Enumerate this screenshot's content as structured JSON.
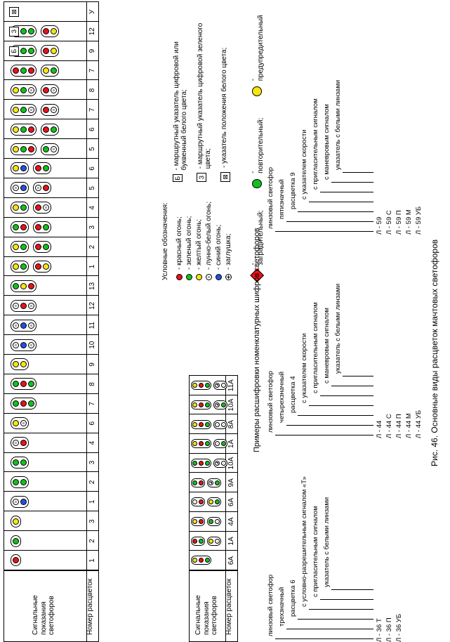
{
  "caption": "Рис. 46. Основные виды расцветок мачтовых светофоров",
  "examples_title": "Примеры расшифровки номенклатурных шифров светофоров",
  "table1": {
    "row_label": "Сигнальные показания светофоров",
    "num_label": "Номер расцветок",
    "numbers": [
      "1",
      "2",
      "3",
      "1",
      "2",
      "3",
      "4",
      "6",
      "7",
      "8",
      "9",
      "10",
      "11",
      "12",
      "13",
      "1",
      "2",
      "3",
      "4",
      "5",
      "6",
      "5",
      "6",
      "7",
      "8",
      "7",
      "9",
      "12",
      "У"
    ],
    "symbols": [
      "Б",
      "З",
      "⊠"
    ]
  },
  "table2": {
    "row_label": "Сигнальные показания светофоров",
    "num_label": "Номер расцветок",
    "numbers": [
      "6А",
      "1А",
      "4А",
      "6А",
      "9А",
      "10А",
      "1А",
      "8А",
      "10А",
      "11А"
    ]
  },
  "legend": {
    "title": "Условные обозначения:",
    "items": [
      {
        "color": "red",
        "text": "- красный огонь;"
      },
      {
        "color": "green",
        "text": "- зеленый огонь;"
      },
      {
        "color": "yellow",
        "text": "- желтый огонь;"
      },
      {
        "color": "white",
        "text": "- лунно-белый огонь;"
      },
      {
        "color": "blue",
        "text": "- синий огонь;"
      },
      {
        "color": "plug",
        "text": "- заглушка;"
      }
    ],
    "route_b": "- маршрутный указатель цифровой или буквенный белого цвета;",
    "route_z": "- маршрутный указатель цифровой зеленого цвета;",
    "pos_white": "- указатель положения белого цвета;",
    "barrier": "- заградительный;",
    "repeat": "- повторительный;",
    "pre": "- предупредительный"
  },
  "decode1": {
    "terms": [
      "линзовый светофор",
      "трехзначный",
      "расцветка 6",
      "с условно-разрешительным сигналом «Т»",
      "с пригласительным сигналом",
      "указатель с белыми линзами"
    ],
    "codes": [
      "Л - 36 Т",
      "Л - 36   П",
      "Л - 36         УБ"
    ]
  },
  "decode2": {
    "terms": [
      "линзовый светофор",
      "четырехзначный",
      "расцветка 4",
      "с указателем скорости",
      "с пригласительным сигналом",
      "с маневровым сигналом",
      "указатель с белыми линзами"
    ],
    "codes": [
      "Л - 44",
      "Л - 44 С",
      "Л - 44   П",
      "Л - 44        М",
      "Л - 44             УБ"
    ]
  },
  "decode3": {
    "terms": [
      "линзовый светофор",
      "пятизначный",
      "расцветка 9",
      "с указателем скорости",
      "с пригласительным сигналом",
      "с маневровым сигналом",
      "указатель с белыми линзами"
    ],
    "codes": [
      "Л - 59",
      "Л - 59 С",
      "Л - 59   П",
      "Л - 59        М",
      "Л - 59             УБ"
    ]
  },
  "colors": {
    "red": "#e8121b",
    "green": "#12c11c",
    "yellow": "#f5e612",
    "blue": "#2450e0"
  }
}
